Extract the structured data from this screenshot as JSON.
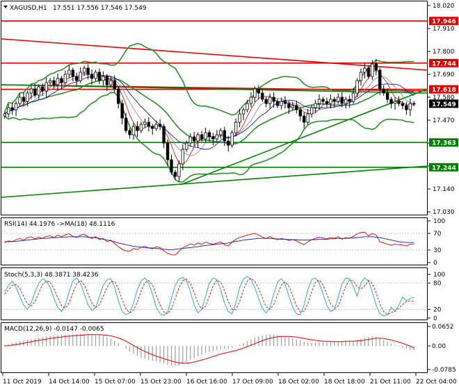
{
  "header": {
    "symbol_text": "XAGUSD,H1",
    "ohlc_text": "17.551 17.556 17.546 17.549"
  },
  "colors": {
    "bull_candle": "#ffffff",
    "bear_candle": "#000000",
    "resistance_line": "#e00000",
    "support_line": "#008000",
    "bollinger": "#2e8b2e",
    "ma_fast": "#d02020",
    "ma_slow": "#1c1ca0",
    "ma_mid": "#9090a0",
    "rsi_line": "#e00000",
    "rsi_ma": "#1c1ca0",
    "stoch_main": "#20a8b0",
    "stoch_signal": "#e00000",
    "macd_hist": "#a0a0a0",
    "macd_signal": "#e00000",
    "price_tag_bg": "#000000"
  },
  "chart_data": [
    {
      "type": "candlestick",
      "title": "XAGUSD,H1",
      "ylim": [
        17.03,
        18.02
      ],
      "y_ticks": [
        "18.020",
        "17.910",
        "17.800",
        "17.690",
        "17.580",
        "17.470",
        "17.360",
        "17.250",
        "17.140",
        "17.030"
      ],
      "x_ticks": [
        "11 Oct 2019",
        "14 Oct 14:00",
        "15 Oct 07:00",
        "15 Oct 23:00",
        "16 Oct 16:00",
        "17 Oct 09:00",
        "18 Oct 02:00",
        "18 Oct 18:00",
        "21 Oct 11:00",
        "22 Oct 04:00"
      ],
      "close_series": [
        17.5,
        17.53,
        17.52,
        17.55,
        17.58,
        17.56,
        17.6,
        17.62,
        17.59,
        17.63,
        17.61,
        17.65,
        17.66,
        17.64,
        17.67,
        17.65,
        17.69,
        17.71,
        17.68,
        17.66,
        17.7,
        17.72,
        17.69,
        17.67,
        17.7,
        17.66,
        17.68,
        17.64,
        17.66,
        17.62,
        17.55,
        17.48,
        17.42,
        17.4,
        17.44,
        17.42,
        17.45,
        17.46,
        17.44,
        17.43,
        17.45,
        17.44,
        17.36,
        17.28,
        17.22,
        17.2,
        17.26,
        17.33,
        17.36,
        17.39,
        17.37,
        17.4,
        17.38,
        17.41,
        17.39,
        17.38,
        17.4,
        17.42,
        17.37,
        17.35,
        17.41,
        17.46,
        17.5,
        17.52,
        17.55,
        17.58,
        17.62,
        17.6,
        17.57,
        17.55,
        17.58,
        17.56,
        17.54,
        17.56,
        17.55,
        17.53,
        17.54,
        17.52,
        17.49,
        17.46,
        17.5,
        17.53,
        17.55,
        17.57,
        17.56,
        17.55,
        17.57,
        17.56,
        17.58,
        17.55,
        17.57,
        17.56,
        17.6,
        17.66,
        17.7,
        17.72,
        17.68,
        17.74,
        17.71,
        17.62,
        17.6,
        17.57,
        17.55,
        17.56,
        17.55,
        17.54,
        17.52,
        17.55,
        17.549
      ],
      "price_tags": [
        {
          "label": "17.946",
          "value": 17.946,
          "color": "#e00000"
        },
        {
          "label": "17.744",
          "value": 17.744,
          "color": "#e00000"
        },
        {
          "label": "17.618",
          "value": 17.618,
          "color": "#e00000"
        },
        {
          "label": "17.549",
          "value": 17.549,
          "color": "#000000"
        },
        {
          "label": "17.363",
          "value": 17.363,
          "color": "#008000"
        },
        {
          "label": "17.244",
          "value": 17.244,
          "color": "#008000"
        }
      ],
      "horizontal_levels": [
        {
          "value": 17.946,
          "color": "#e00000"
        },
        {
          "value": 17.744,
          "color": "#e00000"
        },
        {
          "value": 17.618,
          "color": "#e00000"
        },
        {
          "value": 17.363,
          "color": "#008000"
        },
        {
          "value": 17.244,
          "color": "#008000"
        }
      ],
      "trend_lines": [
        {
          "x": [
            0,
            1
          ],
          "y": [
            17.86,
            17.71
          ],
          "color": "#e00000"
        },
        {
          "x": [
            0,
            1
          ],
          "y": [
            17.64,
            17.61
          ],
          "color": "#e00000"
        },
        {
          "x": [
            0,
            1
          ],
          "y": [
            17.64,
            17.6
          ],
          "color": "#008000"
        },
        {
          "x": [
            0,
            1
          ],
          "y": [
            17.1,
            17.25
          ],
          "color": "#008000"
        },
        {
          "x": [
            0.42,
            1
          ],
          "y": [
            17.16,
            17.62
          ],
          "color": "#008000"
        }
      ]
    },
    {
      "type": "line",
      "title": "RSI(14) 44.1976 ->MA(18) 48.1116",
      "ylim": [
        0,
        100
      ],
      "y_ticks": [
        "100",
        "70",
        "30",
        "0"
      ],
      "levels": [
        70,
        30
      ],
      "series": [
        {
          "name": "RSI(14)",
          "color": "#e00000",
          "values": [
            48,
            52,
            50,
            55,
            58,
            54,
            60,
            62,
            57,
            61,
            58,
            63,
            64,
            60,
            66,
            62,
            67,
            69,
            63,
            60,
            66,
            68,
            62,
            58,
            62,
            55,
            58,
            50,
            54,
            46,
            38,
            32,
            28,
            27,
            34,
            31,
            37,
            39,
            35,
            33,
            38,
            36,
            28,
            22,
            19,
            18,
            27,
            36,
            40,
            45,
            42,
            47,
            44,
            49,
            46,
            44,
            47,
            50,
            43,
            40,
            49,
            56,
            60,
            63,
            66,
            68,
            70,
            66,
            61,
            58,
            62,
            58,
            55,
            58,
            56,
            53,
            55,
            52,
            47,
            43,
            50,
            55,
            58,
            61,
            59,
            57,
            60,
            58,
            62,
            56,
            60,
            58,
            63,
            69,
            72,
            73,
            64,
            70,
            66,
            50,
            47,
            44,
            42,
            44,
            43,
            42,
            40,
            44,
            44
          ]
        },
        {
          "name": "MA(18)",
          "color": "#1c1ca0",
          "values": [
            50,
            50,
            51,
            51,
            52,
            53,
            54,
            55,
            56,
            57,
            58,
            58,
            59,
            60,
            60,
            61,
            61,
            62,
            62,
            62,
            62,
            62,
            61,
            60,
            60,
            58,
            56,
            54,
            52,
            50,
            47,
            45,
            43,
            41,
            39,
            38,
            37,
            36,
            35,
            35,
            34,
            33,
            32,
            31,
            31,
            32,
            33,
            34,
            35,
            36,
            37,
            38,
            40,
            41,
            42,
            43,
            44,
            45,
            46,
            47,
            49,
            51,
            52,
            54,
            55,
            56,
            57,
            58,
            58,
            58,
            58,
            57,
            57,
            56,
            56,
            55,
            55,
            55,
            54,
            54,
            54,
            55,
            55,
            56,
            56,
            56,
            57,
            57,
            58,
            58,
            58,
            59,
            59,
            60,
            61,
            62,
            62,
            62,
            61,
            60,
            58,
            56,
            54,
            52,
            50,
            49,
            48,
            48,
            48
          ]
        }
      ]
    },
    {
      "type": "line",
      "title": "Stoch(5,3,3) 48.3871 38.4236",
      "ylim": [
        0,
        100
      ],
      "y_ticks": [
        "100",
        "80",
        "20",
        "0"
      ],
      "levels": [
        80,
        20
      ],
      "series": [
        {
          "name": "Stoch main",
          "color": "#20a8b0",
          "values": [
            60,
            75,
            85,
            70,
            50,
            30,
            20,
            35,
            60,
            80,
            90,
            85,
            70,
            45,
            25,
            15,
            30,
            60,
            85,
            92,
            80,
            55,
            30,
            18,
            25,
            50,
            75,
            88,
            90,
            70,
            40,
            15,
            8,
            12,
            35,
            65,
            85,
            92,
            80,
            55,
            25,
            10,
            6,
            15,
            45,
            75,
            90,
            93,
            85,
            60,
            30,
            12,
            20,
            50,
            80,
            92,
            88,
            65,
            35,
            15,
            10,
            35,
            70,
            90,
            95,
            88,
            70,
            45,
            22,
            12,
            25,
            55,
            82,
            90,
            78,
            50,
            25,
            10,
            8,
            30,
            65,
            88,
            92,
            80,
            55,
            30,
            15,
            20,
            48,
            78,
            92,
            90,
            72,
            50,
            80,
            92,
            85,
            60,
            30,
            10,
            5,
            8,
            25,
            15,
            30,
            48,
            40,
            45,
            48
          ]
        },
        {
          "name": "Stoch signal",
          "color": "#e00000",
          "values": [
            55,
            65,
            75,
            77,
            68,
            50,
            33,
            28,
            38,
            58,
            77,
            85,
            82,
            67,
            47,
            28,
            23,
            35,
            58,
            79,
            86,
            76,
            55,
            34,
            24,
            31,
            50,
            71,
            84,
            83,
            67,
            42,
            21,
            12,
            18,
            37,
            62,
            81,
            86,
            76,
            53,
            30,
            14,
            10,
            22,
            45,
            70,
            86,
            89,
            79,
            58,
            34,
            21,
            27,
            50,
            74,
            87,
            82,
            63,
            38,
            20,
            20,
            38,
            65,
            85,
            91,
            84,
            68,
            46,
            26,
            20,
            31,
            54,
            76,
            83,
            73,
            51,
            28,
            14,
            16,
            34,
            61,
            82,
            87,
            76,
            55,
            33,
            22,
            28,
            49,
            73,
            87,
            85,
            71,
            67,
            74,
            86,
            79,
            58,
            33,
            15,
            8,
            13,
            16,
            23,
            31,
            38,
            40,
            38
          ]
        }
      ]
    },
    {
      "type": "bar",
      "title": "MACD(12,26,9) -0.0147 -0.0065",
      "ylim": [
        -0.0785,
        0.0652
      ],
      "y_ticks": [
        "0.0652",
        "0.00",
        "-0.0785"
      ],
      "series": [
        {
          "name": "MACD",
          "color": "#a0a0a0",
          "values": [
            0.005,
            0.007,
            0.01,
            0.013,
            0.016,
            0.018,
            0.021,
            0.024,
            0.026,
            0.028,
            0.03,
            0.032,
            0.034,
            0.035,
            0.036,
            0.037,
            0.038,
            0.039,
            0.039,
            0.04,
            0.04,
            0.041,
            0.041,
            0.04,
            0.039,
            0.037,
            0.034,
            0.03,
            0.025,
            0.018,
            0.01,
            0.001,
            -0.009,
            -0.018,
            -0.026,
            -0.033,
            -0.039,
            -0.043,
            -0.046,
            -0.049,
            -0.052,
            -0.055,
            -0.058,
            -0.062,
            -0.066,
            -0.067,
            -0.065,
            -0.06,
            -0.053,
            -0.046,
            -0.04,
            -0.034,
            -0.029,
            -0.024,
            -0.02,
            -0.017,
            -0.014,
            -0.012,
            -0.011,
            -0.01,
            -0.006,
            -0.002,
            0.004,
            0.01,
            0.016,
            0.022,
            0.028,
            0.033,
            0.036,
            0.038,
            0.039,
            0.038,
            0.036,
            0.034,
            0.031,
            0.028,
            0.025,
            0.022,
            0.018,
            0.014,
            0.012,
            0.011,
            0.011,
            0.012,
            0.013,
            0.014,
            0.015,
            0.015,
            0.016,
            0.016,
            0.017,
            0.017,
            0.018,
            0.02,
            0.024,
            0.028,
            0.03,
            0.032,
            0.031,
            0.026,
            0.02,
            0.014,
            0.008,
            0.003,
            -0.002,
            -0.006,
            -0.01,
            -0.013,
            -0.0147
          ]
        },
        {
          "name": "Signal",
          "color": "#e00000",
          "values": [
            0.0,
            0.001,
            0.003,
            0.005,
            0.007,
            0.009,
            0.012,
            0.014,
            0.017,
            0.019,
            0.021,
            0.023,
            0.025,
            0.027,
            0.029,
            0.03,
            0.032,
            0.033,
            0.034,
            0.035,
            0.036,
            0.037,
            0.038,
            0.038,
            0.038,
            0.038,
            0.037,
            0.036,
            0.034,
            0.031,
            0.027,
            0.022,
            0.016,
            0.009,
            0.002,
            -0.005,
            -0.012,
            -0.018,
            -0.024,
            -0.029,
            -0.034,
            -0.038,
            -0.042,
            -0.046,
            -0.05,
            -0.053,
            -0.056,
            -0.057,
            -0.057,
            -0.056,
            -0.053,
            -0.05,
            -0.047,
            -0.043,
            -0.039,
            -0.035,
            -0.031,
            -0.027,
            -0.024,
            -0.021,
            -0.018,
            -0.015,
            -0.011,
            -0.007,
            -0.002,
            0.003,
            0.008,
            0.013,
            0.018,
            0.022,
            0.026,
            0.029,
            0.031,
            0.032,
            0.032,
            0.032,
            0.031,
            0.03,
            0.028,
            0.025,
            0.023,
            0.021,
            0.019,
            0.017,
            0.016,
            0.016,
            0.015,
            0.015,
            0.015,
            0.015,
            0.016,
            0.016,
            0.016,
            0.017,
            0.018,
            0.02,
            0.022,
            0.024,
            0.026,
            0.026,
            0.025,
            0.023,
            0.02,
            0.017,
            0.013,
            0.009,
            0.004,
            0.0,
            -0.0065
          ]
        }
      ]
    }
  ]
}
